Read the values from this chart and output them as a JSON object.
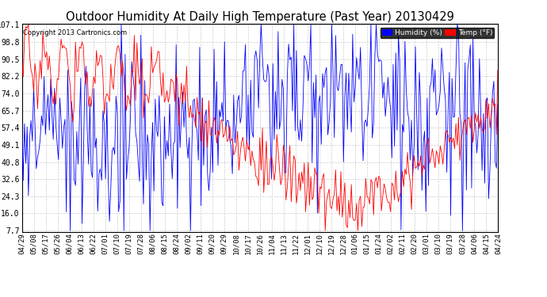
{
  "title": "Outdoor Humidity At Daily High Temperature (Past Year) 20130429",
  "copyright": "Copyright 2013 Cartronics.com",
  "yticks": [
    7.7,
    16.0,
    24.3,
    32.6,
    40.8,
    49.1,
    57.4,
    65.7,
    74.0,
    82.2,
    90.5,
    98.8,
    107.1
  ],
  "xtick_labels": [
    "04/29",
    "05/08",
    "05/17",
    "05/26",
    "06/04",
    "06/13",
    "06/22",
    "07/01",
    "07/10",
    "07/19",
    "07/28",
    "08/06",
    "08/15",
    "08/24",
    "09/02",
    "09/11",
    "09/20",
    "09/29",
    "10/08",
    "10/17",
    "10/26",
    "11/04",
    "11/13",
    "11/22",
    "12/01",
    "12/10",
    "12/19",
    "12/28",
    "01/06",
    "01/15",
    "01/24",
    "02/02",
    "02/11",
    "02/20",
    "03/01",
    "03/10",
    "03/19",
    "03/28",
    "04/06",
    "04/15",
    "04/24"
  ],
  "bg_color": "#ffffff",
  "grid_color": "#cccccc",
  "humidity_color": "#0000ff",
  "temp_color": "#ff0000",
  "humidity_label": "Humidity (%)",
  "temp_label": "Temp (°F)",
  "title_fontsize": 10.5,
  "tick_fontsize": 7.0,
  "n_points": 365,
  "ymin": 7.7,
  "ymax": 107.1
}
